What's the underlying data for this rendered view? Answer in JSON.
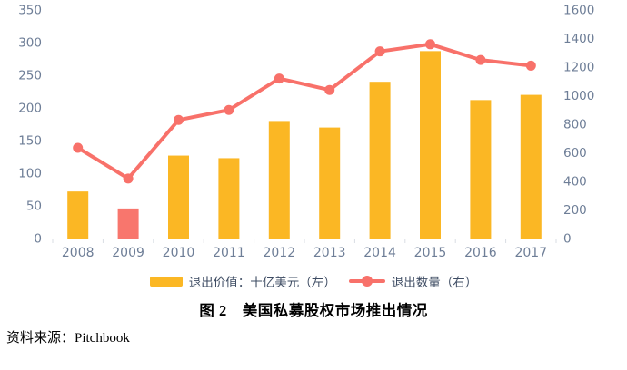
{
  "figure": {
    "caption": "图 2　美国私募股权市场推出情况",
    "source_label": "资料来源：Pitchbook"
  },
  "chart_data": {
    "type": "bar+line",
    "categories": [
      "2008",
      "2009",
      "2010",
      "2011",
      "2012",
      "2013",
      "2014",
      "2015",
      "2016",
      "2017"
    ],
    "series": [
      {
        "name": "退出价值：十亿美元（左）",
        "type": "bar",
        "axis": "left",
        "color": "#FBB724",
        "highlight_index": 1,
        "highlight_color": "#F8766D",
        "values": [
          72,
          46,
          127,
          123,
          180,
          170,
          240,
          287,
          212,
          220
        ]
      },
      {
        "name": "退出数量（右）",
        "type": "line",
        "axis": "right",
        "color": "#F8716A",
        "values": [
          635,
          420,
          830,
          900,
          1120,
          1040,
          1310,
          1360,
          1250,
          1210
        ]
      }
    ],
    "left_axis": {
      "min": 0,
      "max": 350,
      "ticks": [
        0,
        50,
        100,
        150,
        200,
        250,
        300,
        350
      ]
    },
    "right_axis": {
      "min": 0,
      "max": 1600,
      "ticks": [
        0,
        200,
        400,
        600,
        800,
        1000,
        1200,
        1400,
        1600
      ]
    },
    "grid": false,
    "legend_position": "bottom",
    "axis_text_color": "#6E7E97",
    "axis_line_color": "#D9DDE3"
  }
}
